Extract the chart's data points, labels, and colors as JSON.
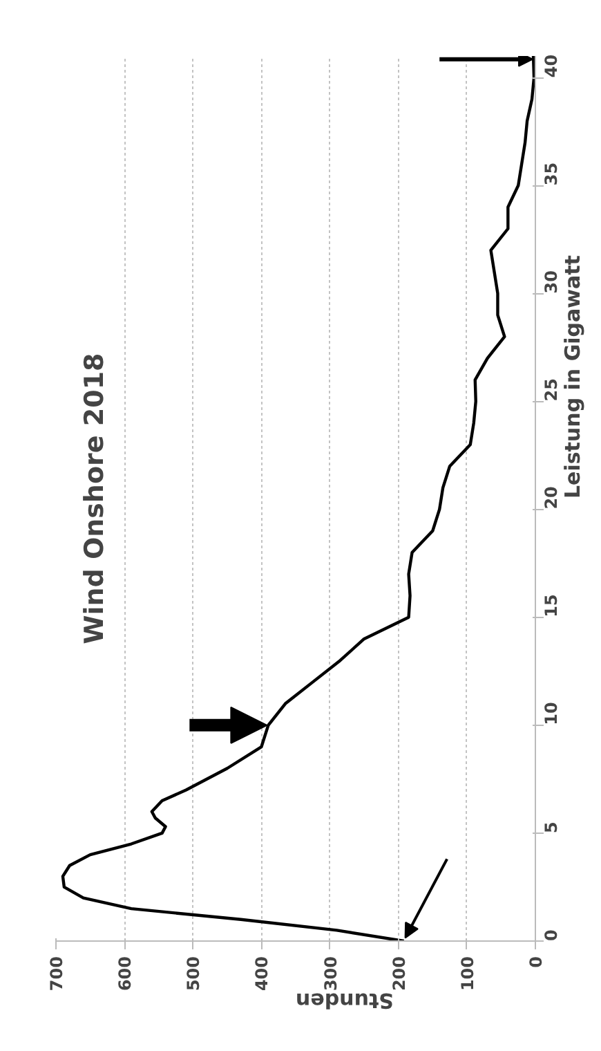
{
  "chart_data": {
    "type": "line",
    "title": "Wind Onshore 2018",
    "xlabel": "Stunden",
    "ylabel": "Leistung in Gigawatt",
    "series": [
      {
        "color": "#000000",
        "x": [
          192,
          290,
          430,
          590,
          660,
          688,
          690,
          680,
          650,
          590,
          545,
          540,
          555,
          560,
          545,
          510,
          450,
          400,
          390,
          365,
          325,
          285,
          250,
          185,
          183,
          185,
          180,
          150,
          140,
          135,
          125,
          95,
          90,
          87,
          88,
          70,
          45,
          55,
          55,
          60,
          65,
          40,
          40,
          25,
          20,
          15,
          12,
          5,
          2,
          3
        ],
        "values": [
          0,
          0.5,
          1,
          1.5,
          2,
          2.5,
          3,
          3.5,
          4,
          4.5,
          5,
          5.3,
          5.7,
          6,
          6.5,
          7,
          8,
          9,
          10,
          11,
          12,
          13,
          14,
          15,
          16,
          17,
          18,
          19,
          20,
          21,
          22,
          23,
          24,
          25,
          26,
          27,
          28,
          29,
          30,
          31,
          32,
          33,
          34,
          35,
          36,
          37,
          38,
          39,
          40,
          41
        ]
      }
    ],
    "xlim": [
      700,
      0
    ],
    "xticks": [
      0,
      100,
      200,
      300,
      400,
      500,
      600,
      700
    ],
    "ylim": [
      0,
      41
    ],
    "yticks": [
      0,
      5,
      10,
      15,
      20,
      25,
      30,
      35,
      40
    ],
    "grid": "x",
    "line_style": "solid"
  }
}
